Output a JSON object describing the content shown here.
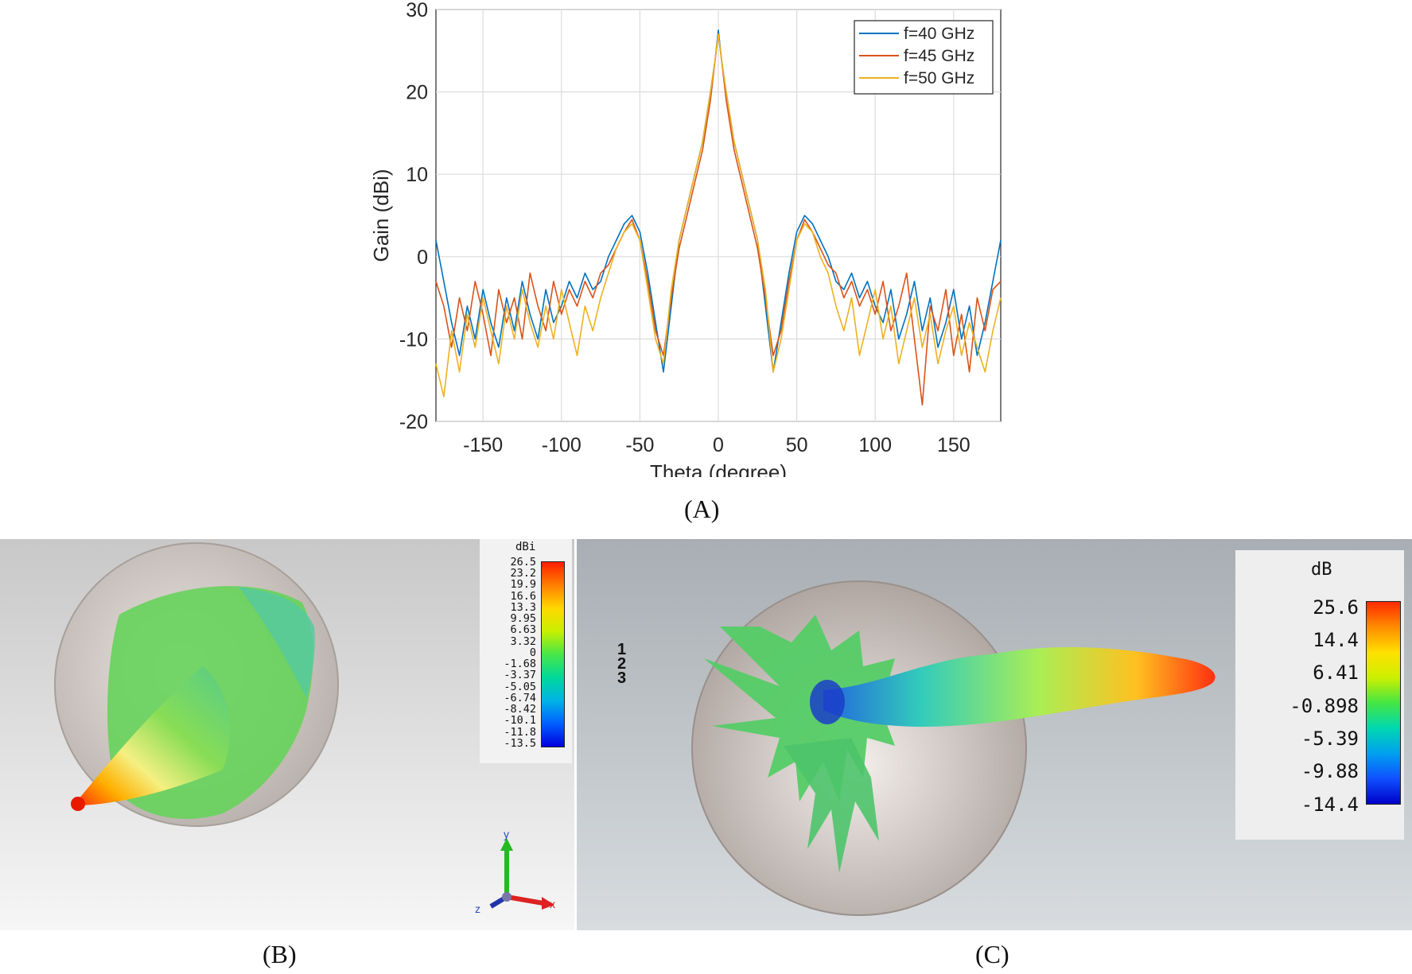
{
  "panels": {
    "A": {
      "caption": "(A)"
    },
    "B": {
      "caption": "(B)",
      "colorbar": {
        "unit": "dBi",
        "ticks": [
          "26.5",
          "23.2",
          "19.9",
          "16.6",
          "13.3",
          "9.95",
          "6.63",
          "3.32",
          "0",
          "-1.68",
          "-3.37",
          "-5.05",
          "-6.74",
          "-8.42",
          "-10.1",
          "-11.8",
          "-13.5"
        ]
      },
      "axes": {
        "y": "y",
        "x": "x",
        "z": "z"
      }
    },
    "C": {
      "caption": "(C)",
      "colorbar": {
        "unit": "dB",
        "ticks": [
          "25.6",
          "14.4",
          "6.41",
          "-0.898",
          "-5.39",
          "-9.88",
          "-14.4"
        ]
      },
      "markers": [
        "1",
        "2",
        "3"
      ]
    }
  },
  "chart_data": {
    "type": "line",
    "title": "",
    "xlabel": "Theta (degree)",
    "ylabel": "Gain (dBi)",
    "xlim": [
      -180,
      180
    ],
    "ylim": [
      -20,
      30
    ],
    "xticks": [
      -150,
      -100,
      -50,
      0,
      50,
      100,
      150
    ],
    "yticks": [
      -20,
      -10,
      0,
      10,
      20,
      30
    ],
    "grid": true,
    "legend_position": "top-right",
    "series": [
      {
        "name": "f=40 GHz",
        "color": "#0072bd",
        "x": [
          -180,
          -175,
          -170,
          -165,
          -160,
          -155,
          -150,
          -145,
          -140,
          -135,
          -130,
          -125,
          -120,
          -115,
          -110,
          -105,
          -100,
          -95,
          -90,
          -85,
          -80,
          -75,
          -70,
          -65,
          -60,
          -55,
          -50,
          -45,
          -40,
          -35,
          -30,
          -25,
          -20,
          -15,
          -10,
          -5,
          -2,
          0,
          2,
          5,
          10,
          15,
          20,
          25,
          30,
          35,
          40,
          45,
          50,
          55,
          60,
          65,
          70,
          75,
          80,
          85,
          90,
          95,
          100,
          105,
          110,
          115,
          120,
          125,
          130,
          135,
          140,
          145,
          150,
          155,
          160,
          165,
          170,
          175,
          180
        ],
        "y": [
          2,
          -3,
          -8,
          -12,
          -6,
          -10,
          -4,
          -8,
          -11,
          -5,
          -9,
          -3,
          -7,
          -10,
          -4,
          -8,
          -6,
          -3,
          -5,
          -2,
          -4,
          -3,
          0,
          2,
          4,
          5,
          3,
          -2,
          -8,
          -14,
          -6,
          2,
          6,
          10,
          14,
          20,
          24,
          27.5,
          24,
          20,
          14,
          10,
          6,
          2,
          -6,
          -14,
          -8,
          -2,
          3,
          5,
          4,
          2,
          0,
          -3,
          -4,
          -2,
          -5,
          -3,
          -6,
          -8,
          -4,
          -10,
          -7,
          -3,
          -9,
          -5,
          -11,
          -8,
          -4,
          -10,
          -6,
          -12,
          -8,
          -3,
          2
        ]
      },
      {
        "name": "f=45 GHz",
        "color": "#d95319",
        "x": [
          -180,
          -175,
          -170,
          -165,
          -160,
          -155,
          -150,
          -145,
          -140,
          -135,
          -130,
          -125,
          -120,
          -115,
          -110,
          -105,
          -100,
          -95,
          -90,
          -85,
          -80,
          -75,
          -70,
          -65,
          -60,
          -55,
          -50,
          -45,
          -40,
          -35,
          -30,
          -25,
          -20,
          -15,
          -10,
          -5,
          -2,
          0,
          2,
          5,
          10,
          15,
          20,
          25,
          30,
          35,
          40,
          45,
          50,
          55,
          60,
          65,
          70,
          75,
          80,
          85,
          90,
          95,
          100,
          105,
          110,
          115,
          120,
          125,
          130,
          135,
          140,
          145,
          150,
          155,
          160,
          165,
          170,
          175,
          180
        ],
        "y": [
          -3,
          -6,
          -11,
          -5,
          -9,
          -3,
          -7,
          -12,
          -4,
          -8,
          -5,
          -10,
          -2,
          -6,
          -9,
          -3,
          -7,
          -4,
          -6,
          -3,
          -5,
          -2,
          -1,
          1,
          3,
          4.5,
          2,
          -3,
          -9,
          -12,
          -5,
          1,
          5,
          9,
          13,
          19,
          24,
          27,
          24,
          19,
          13,
          9,
          5,
          1,
          -5,
          -12,
          -9,
          -3,
          2,
          4.5,
          3,
          1,
          -1,
          -2,
          -5,
          -3,
          -6,
          -4,
          -7,
          -3,
          -9,
          -6,
          -2,
          -10,
          -18,
          -6,
          -9,
          -4,
          -12,
          -7,
          -14,
          -5,
          -9,
          -4,
          -3
        ]
      },
      {
        "name": "f=50 GHz",
        "color": "#edb120",
        "x": [
          -180,
          -175,
          -170,
          -165,
          -160,
          -155,
          -150,
          -145,
          -140,
          -135,
          -130,
          -125,
          -120,
          -115,
          -110,
          -105,
          -100,
          -95,
          -90,
          -85,
          -80,
          -75,
          -70,
          -65,
          -60,
          -55,
          -50,
          -45,
          -40,
          -35,
          -30,
          -25,
          -20,
          -15,
          -10,
          -5,
          -2,
          0,
          2,
          5,
          10,
          15,
          20,
          25,
          30,
          35,
          40,
          45,
          50,
          55,
          60,
          65,
          70,
          75,
          80,
          85,
          90,
          95,
          100,
          105,
          110,
          115,
          120,
          125,
          130,
          135,
          140,
          145,
          150,
          155,
          160,
          165,
          170,
          175,
          180
        ],
        "y": [
          -13,
          -17,
          -9,
          -14,
          -7,
          -11,
          -5,
          -9,
          -13,
          -6,
          -10,
          -4,
          -8,
          -11,
          -6,
          -10,
          -4,
          -8,
          -12,
          -6,
          -9,
          -5,
          -2,
          1,
          3,
          4,
          2,
          -4,
          -10,
          -13,
          -4,
          2,
          6,
          10,
          14,
          20,
          24,
          27,
          24,
          20,
          14,
          10,
          6,
          2,
          -4,
          -14,
          -10,
          -4,
          2,
          4,
          3,
          0,
          -2,
          -6,
          -9,
          -5,
          -12,
          -8,
          -4,
          -10,
          -6,
          -13,
          -9,
          -5,
          -11,
          -7,
          -13,
          -9,
          -6,
          -12,
          -8,
          -11,
          -14,
          -9,
          -5
        ]
      }
    ]
  }
}
